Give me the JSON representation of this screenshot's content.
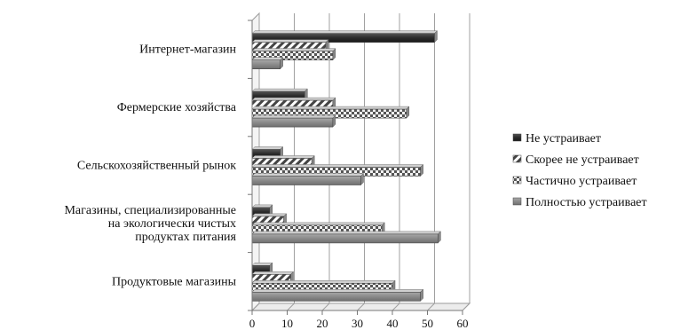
{
  "chart_data": {
    "type": "bar",
    "orientation": "horizontal",
    "title": "",
    "xlabel": "",
    "ylabel": "",
    "xlim": [
      0,
      60
    ],
    "ticks": [
      0,
      10,
      20,
      30,
      40,
      50,
      60
    ],
    "grid": true,
    "legend_position": "right",
    "categories": [
      [
        "Интернет-магазин"
      ],
      [
        "Фермерские хозяйства"
      ],
      [
        "Сельскохозяйственный рынок"
      ],
      [
        "Магазины, специализированные",
        "на экологически чистых",
        "продуктах питания"
      ],
      [
        "Продуктовые магазины"
      ]
    ],
    "series": [
      {
        "name": "Не устраивает",
        "values": [
          52,
          15,
          8,
          5,
          5
        ],
        "color": "#333333",
        "pattern": "solid"
      },
      {
        "name": "Скорее не устраивает",
        "values": [
          21,
          23,
          17,
          9,
          11
        ],
        "color": "#555555",
        "pattern": "diagonal"
      },
      {
        "name": "Частично устраивает",
        "values": [
          23,
          44,
          48,
          37,
          40
        ],
        "color": "#666666",
        "pattern": "checker"
      },
      {
        "name": "Полностью устраивает",
        "values": [
          8,
          23,
          31,
          53,
          48
        ],
        "color": "#8a8a8a",
        "pattern": "solid"
      }
    ]
  }
}
